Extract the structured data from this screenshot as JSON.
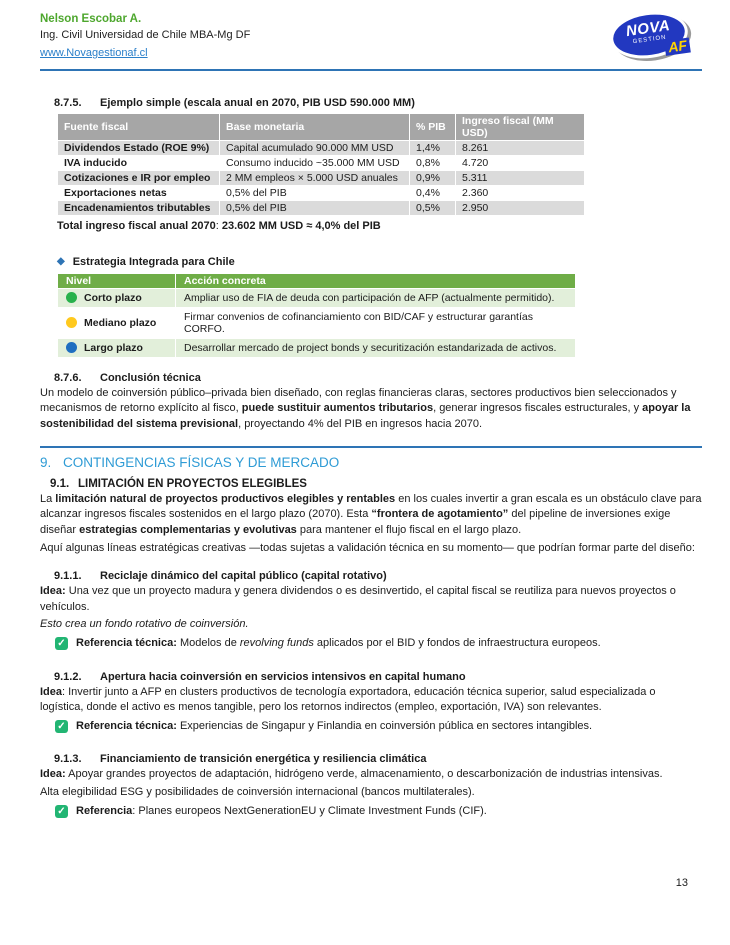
{
  "header": {
    "name": "Nelson Escobar A.",
    "credential": "Ing. Civil Universidad de Chile MBA-Mg DF",
    "website": "www.Novagestionaf.cl",
    "logo": {
      "line1": "NOVA",
      "line2": "GESTION",
      "line3": "AF"
    }
  },
  "icons": {
    "check_glyph": "✓",
    "diamond_glyph": "◆"
  },
  "colors": {
    "accent_rule_blue": "#2E74B5",
    "heading_blue": "#2E9BD5",
    "name_green": "#4EA72E",
    "link_blue": "#2A7FC9",
    "table1_header_bg": "#A6A6A6",
    "table1_alt_row_bg": "#DBDBDB",
    "table2_header_bg": "#6FAD47",
    "table2_alt_row_bg": "#E2EFDA",
    "check_green": "#22B573",
    "dot_green": "#28B14C",
    "dot_yellow": "#FFC91E",
    "dot_blue": "#1F6EC0",
    "logo_blue": "#2238C0",
    "logo_yellow": "#FFD400"
  },
  "section_875": {
    "number": "8.7.5.",
    "title": "Ejemplo simple (escala anual en 2070, PIB USD 590.000 MM)",
    "table": {
      "headers": [
        "Fuente fiscal",
        "Base monetaria",
        "% PIB",
        "Ingreso fiscal (MM USD)"
      ],
      "rows": [
        [
          "Dividendos Estado (ROE 9%)",
          "Capital acumulado 90.000 MM USD",
          "1,4%",
          "8.261"
        ],
        [
          "IVA inducido",
          "Consumo inducido ~35.000 MM USD",
          "0,8%",
          "4.720"
        ],
        [
          "Cotizaciones e IR por empleo",
          "2 MM empleos × 5.000 USD anuales",
          "0,9%",
          "5.311"
        ],
        [
          "Exportaciones netas",
          "0,5% del PIB",
          "0,4%",
          "2.360"
        ],
        [
          "Encadenamientos tributables",
          "0,5% del PIB",
          "0,5%",
          "2.950"
        ]
      ]
    },
    "total": [
      {
        "t": "Total ingreso fiscal anual 2070",
        "b": true
      },
      {
        "t": ": "
      },
      {
        "t": "23.602 MM USD ≈ 4,0% del PIB",
        "b": true
      }
    ]
  },
  "estrategia": {
    "title": "Estrategia Integrada para Chile",
    "table": {
      "headers": [
        "Nivel",
        "Acción concreta"
      ],
      "rows": [
        {
          "nivel": "Corto plazo",
          "accion": "Ampliar uso de FIA de deuda con participación de AFP (actualmente permitido)."
        },
        {
          "nivel": "Mediano plazo",
          "accion": "Firmar convenios de cofinanciamiento con BID/CAF y estructurar garantías CORFO."
        },
        {
          "nivel": "Largo plazo",
          "accion": "Desarrollar mercado de project bonds y securitización estandarizada de activos."
        }
      ]
    }
  },
  "section_876": {
    "number": "8.7.6.",
    "title": "Conclusión técnica",
    "paragraph": [
      {
        "t": "Un modelo de coinversión público–privada bien diseñado, con reglas financieras claras, sectores productivos bien seleccionados y mecanismos de retorno explícito al fisco, "
      },
      {
        "t": "puede sustituir aumentos tributarios",
        "b": true
      },
      {
        "t": ", generar ingresos fiscales estructurales, y "
      },
      {
        "t": "apoyar la sostenibilidad del sistema previsional",
        "b": true
      },
      {
        "t": ", proyectando 4% del PIB en ingresos hacia 2070."
      }
    ]
  },
  "section_9": {
    "number": "9.",
    "title": "CONTINGENCIAS FÍSICAS Y DE MERCADO"
  },
  "section_91": {
    "number": "9.1.",
    "title": "LIMITACIÓN EN PROYECTOS ELEGIBLES",
    "paragraph1": [
      {
        "t": "La "
      },
      {
        "t": "limitación natural de proyectos productivos elegibles y rentables",
        "b": true
      },
      {
        "t": " en los cuales invertir a gran escala es un obstáculo clave para alcanzar ingresos fiscales sostenidos en el largo plazo (2070). Esta "
      },
      {
        "t": "“frontera de agotamiento”",
        "b": true
      },
      {
        "t": " del pipeline de inversiones exige diseñar "
      },
      {
        "t": "estrategias complementarias y evolutivas",
        "b": true
      },
      {
        "t": " para mantener el flujo fiscal en el largo plazo."
      }
    ],
    "paragraph2": [
      {
        "t": "Aquí algunas líneas estratégicas creativas —todas sujetas a validación técnica en su momento— que podrían formar parte del diseño:"
      }
    ]
  },
  "subsections": [
    {
      "number": "9.1.1.",
      "title": "Reciclaje dinámico del capital público (capital rotativo)",
      "body": [
        [
          {
            "t": "Idea:",
            "b": true
          },
          {
            "t": " Una vez que un proyecto madura y genera dividendos o es desinvertido, el capital fiscal se reutiliza para nuevos proyectos o vehículos."
          }
        ],
        [
          {
            "t": "Esto crea un fondo rotativo de coinversión.",
            "i": true
          }
        ]
      ],
      "reference": [
        {
          "t": "Referencia técnica:",
          "b": true
        },
        {
          "t": " Modelos de "
        },
        {
          "t": "revolving funds",
          "i": true
        },
        {
          "t": " aplicados por el BID y fondos de infraestructura europeos."
        }
      ]
    },
    {
      "number": "9.1.2.",
      "title": "Apertura hacia coinversión en servicios intensivos en capital humano",
      "body": [
        [
          {
            "t": "Idea",
            "b": true
          },
          {
            "t": ": Invertir junto a AFP en clusters productivos de tecnología exportadora, educación técnica superior, salud especializada o logística, donde el activo es menos tangible, pero los retornos indirectos (empleo, exportación, IVA) son relevantes."
          }
        ]
      ],
      "reference": [
        {
          "t": "Referencia técnica:",
          "b": true
        },
        {
          "t": " Experiencias de Singapur y Finlandia en coinversión pública en sectores intangibles."
        }
      ]
    },
    {
      "number": "9.1.3.",
      "title": "Financiamiento de transición energética y resiliencia climática",
      "body": [
        [
          {
            "t": "Idea:",
            "b": true
          },
          {
            "t": " Apoyar grandes proyectos de adaptación, hidrógeno verde, almacenamiento, o descarbonización de industrias intensivas."
          }
        ],
        [
          {
            "t": "Alta elegibilidad ESG y posibilidades de coinversión internacional (bancos multilaterales)."
          }
        ]
      ],
      "reference": [
        {
          "t": "Referencia",
          "b": true
        },
        {
          "t": ": Planes europeos NextGenerationEU y Climate Investment Funds (CIF)."
        }
      ]
    }
  ],
  "footer": {
    "page_number": "13"
  }
}
